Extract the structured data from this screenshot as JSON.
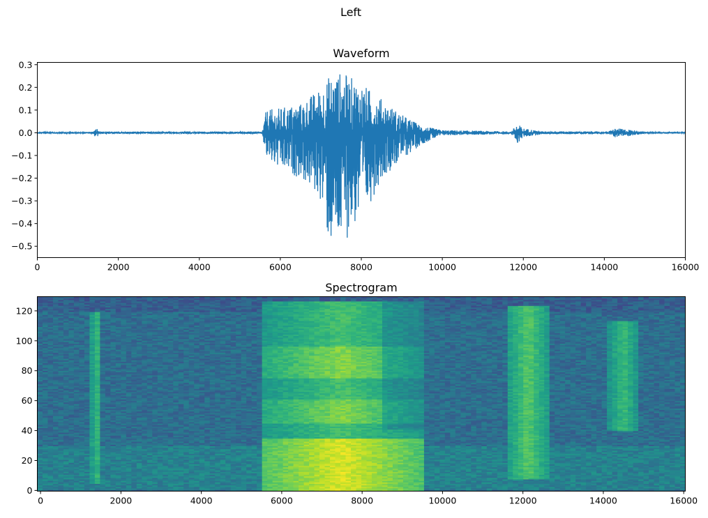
{
  "figure_title": "Left",
  "chart_data": [
    {
      "type": "line",
      "title": "Waveform",
      "xlabel": "",
      "ylabel": "",
      "xlim": [
        0,
        16000
      ],
      "ylim": [
        -0.55,
        0.31
      ],
      "xticks": [
        "0",
        "2000",
        "4000",
        "6000",
        "8000",
        "10000",
        "12000",
        "14000",
        "16000"
      ],
      "yticks": [
        "0.3",
        "0.2",
        "0.1",
        "0.0",
        "−0.1",
        "−0.2",
        "−0.3",
        "−0.4",
        "−0.5"
      ],
      "color": "#1f77b4",
      "envelope": {
        "x": [
          0,
          1380,
          1450,
          1530,
          5550,
          5650,
          6000,
          6500,
          7000,
          7200,
          7500,
          7800,
          8000,
          8500,
          9000,
          9500,
          10000,
          11700,
          11850,
          12000,
          12500,
          14100,
          14250,
          14600,
          15000,
          16000
        ],
        "upper": [
          0.004,
          0.004,
          0.03,
          0.005,
          0.005,
          0.1,
          0.11,
          0.13,
          0.2,
          0.25,
          0.27,
          0.24,
          0.22,
          0.15,
          0.08,
          0.03,
          0.012,
          0.006,
          0.04,
          0.02,
          0.006,
          0.006,
          0.02,
          0.015,
          0.004,
          0.004
        ],
        "lower": [
          -0.004,
          -0.004,
          -0.03,
          -0.005,
          -0.005,
          -0.12,
          -0.17,
          -0.2,
          -0.3,
          -0.5,
          -0.51,
          -0.42,
          -0.4,
          -0.2,
          -0.12,
          -0.05,
          -0.012,
          -0.006,
          -0.05,
          -0.02,
          -0.006,
          -0.006,
          -0.02,
          -0.015,
          -0.004,
          -0.004
        ]
      }
    },
    {
      "type": "heatmap",
      "title": "Spectrogram",
      "xlabel": "",
      "ylabel": "",
      "xlim": [
        -80,
        16040
      ],
      "ylim": [
        -0.5,
        129.5
      ],
      "xticks": [
        "0",
        "2000",
        "4000",
        "6000",
        "8000",
        "10000",
        "12000",
        "14000",
        "16000"
      ],
      "yticks": [
        "0",
        "20",
        "40",
        "60",
        "80",
        "100",
        "120"
      ],
      "colormap": "viridis",
      "frames": 124,
      "bins": 129,
      "active_regions": [
        {
          "t": [
            1250,
            1520
          ],
          "bins": [
            5,
            118
          ],
          "level": 0.68
        },
        {
          "t": [
            5500,
            9500
          ],
          "bins": [
            0,
            125
          ],
          "level": 0.95
        },
        {
          "t": [
            11650,
            12600
          ],
          "bins": [
            8,
            122
          ],
          "level": 0.74
        },
        {
          "t": [
            14150,
            14850
          ],
          "bins": [
            40,
            112
          ],
          "level": 0.68
        }
      ]
    }
  ]
}
